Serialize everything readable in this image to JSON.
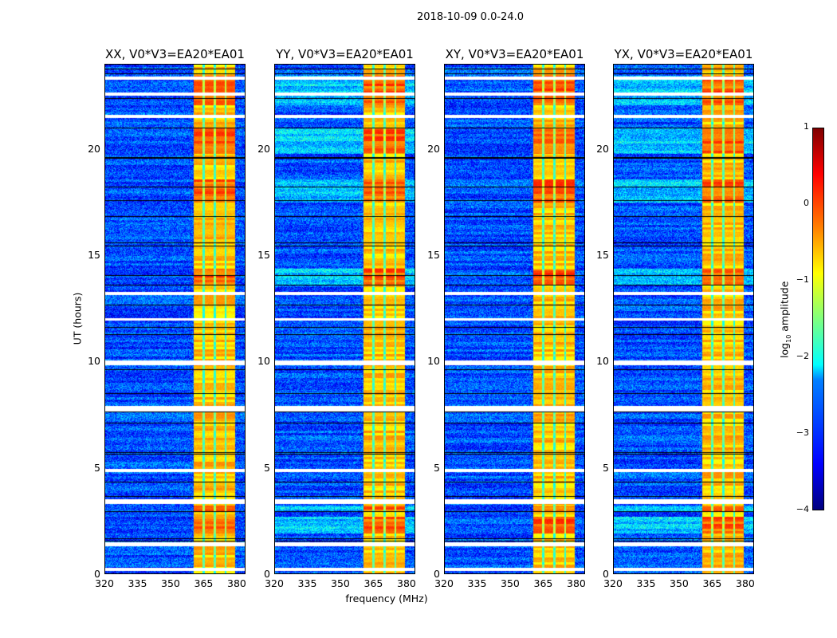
{
  "chart_data": {
    "type": "heatmap",
    "title": "2018-10-09 0.0-24.0",
    "xlabel": "frequency (MHz)",
    "ylabel": "UT (hours)",
    "xlim": [
      320,
      384
    ],
    "ylim": [
      0,
      24
    ],
    "xticks": [
      "320",
      "335",
      "350",
      "365",
      "380"
    ],
    "xtick_values": [
      320,
      335,
      350,
      365,
      380
    ],
    "yticks": [
      "0",
      "5",
      "10",
      "15",
      "20"
    ],
    "ytick_values": [
      0,
      5,
      10,
      15,
      20
    ],
    "panels": [
      {
        "title": "XX, V0*V3=EA20*EA01"
      },
      {
        "title": "YY, V0*V3=EA20*EA01"
      },
      {
        "title": "XY, V0*V3=EA20*EA01"
      },
      {
        "title": "YX, V0*V3=EA20*EA01"
      }
    ],
    "colorbar": {
      "label": "log10 amplitude",
      "label_main": "log",
      "label_sub": "10",
      "label_rest": " amplitude",
      "range": [
        -4,
        1
      ],
      "ticks": [
        "1",
        "0",
        "−1",
        "−2",
        "−3",
        "−4"
      ],
      "tick_values": [
        1,
        0,
        -1,
        -2,
        -3,
        -4
      ],
      "colormap": "jet"
    },
    "background_level": -3,
    "signal_band_mhz": [
      360.5,
      379.5
    ],
    "subband_edges_mhz": [
      365,
      370,
      375
    ],
    "band_level": -0.6,
    "strong_intervals_hours": [
      [
        2.9,
        3.2
      ],
      [
        1.9,
        2.7
      ],
      [
        13.6,
        14.4
      ],
      [
        17.5,
        18.6
      ],
      [
        19.8,
        21
      ],
      [
        22.1,
        23.5
      ]
    ],
    "flagged_intervals_hours": [
      [
        0.15,
        0.3
      ],
      [
        1.3,
        1.5
      ],
      [
        3.3,
        3.5
      ],
      [
        4.8,
        4.95
      ],
      [
        7.65,
        7.9
      ],
      [
        9.85,
        10.05
      ],
      [
        11.95,
        12.05
      ],
      [
        13.15,
        13.3
      ],
      [
        21.5,
        21.65
      ],
      [
        22.55,
        22.7
      ],
      [
        23.3,
        23.45
      ]
    ]
  }
}
